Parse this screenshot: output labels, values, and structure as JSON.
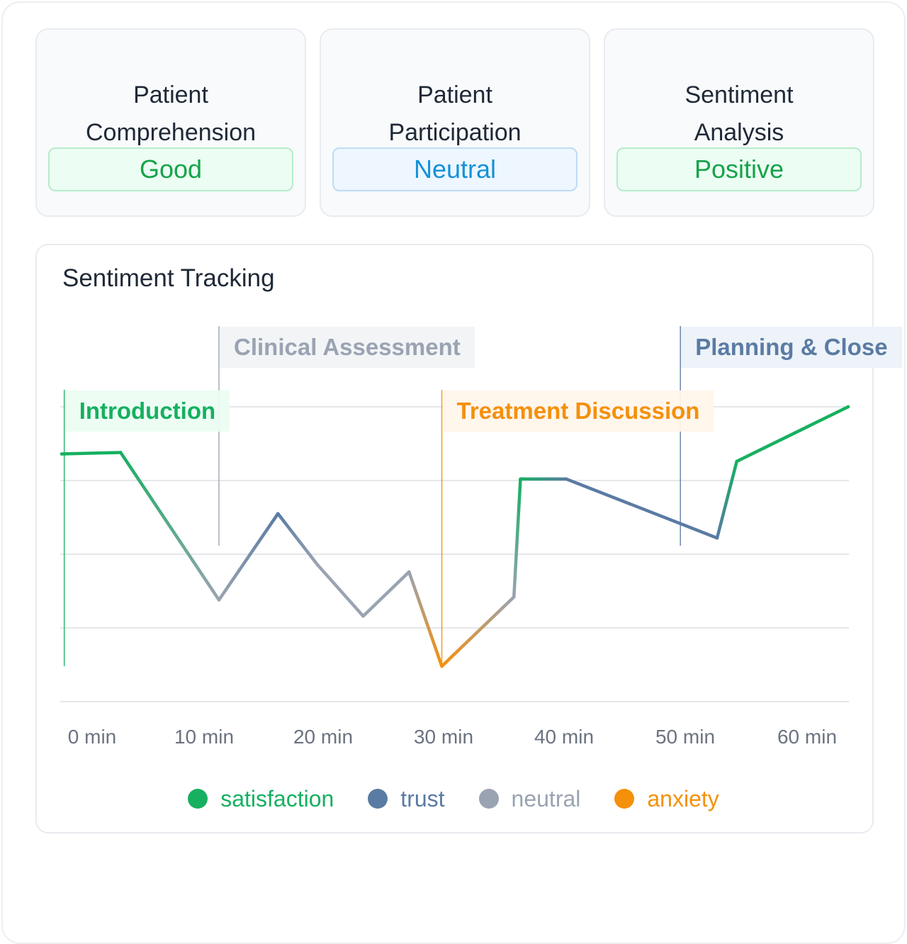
{
  "metrics": [
    {
      "title_line1": "Patient",
      "title_line2": "Comprehension",
      "value": "Good",
      "style": "green"
    },
    {
      "title_line1": "Patient",
      "title_line2": "Participation",
      "value": "Neutral",
      "style": "blue"
    },
    {
      "title_line1": "Sentiment",
      "title_line2": "Analysis",
      "value": "Positive",
      "style": "green"
    }
  ],
  "chart": {
    "title": "Sentiment Tracking"
  },
  "colors": {
    "satisfaction": "#16b060",
    "trust": "#5a7ba3",
    "neutral": "#9aa3b2",
    "anxiety": "#f5900a"
  },
  "chart_data": {
    "type": "line",
    "title": "Sentiment Tracking",
    "xlabel": "",
    "ylabel": "",
    "x_unit": "min",
    "xlim": [
      0,
      60
    ],
    "ylim": [
      0,
      4
    ],
    "grid": true,
    "x_ticks": [
      "0 min",
      "10 min",
      "20 min",
      "30 min",
      "40 min",
      "50 min",
      "60 min"
    ],
    "series": [
      {
        "x": [
          0,
          4.5,
          12,
          16.5,
          19.5,
          23,
          26.5,
          29,
          34.5,
          35,
          38.5,
          50,
          51.5,
          60
        ],
        "values": [
          3.36,
          3.38,
          1.38,
          2.55,
          1.86,
          1.16,
          1.76,
          0.48,
          1.42,
          3.02,
          3.02,
          2.22,
          3.26,
          4.0
        ],
        "sentiments": [
          "satisfaction",
          "satisfaction",
          "neutral",
          "trust",
          "neutral",
          "neutral",
          "neutral",
          "anxiety",
          "neutral",
          "satisfaction",
          "trust",
          "trust",
          "satisfaction",
          "satisfaction"
        ]
      }
    ],
    "phases": [
      {
        "label": "Introduction",
        "start": 0.2,
        "sentiment": "satisfaction",
        "row": 2
      },
      {
        "label": "Clinical Assessment",
        "start": 12,
        "sentiment": "neutral",
        "row": 1
      },
      {
        "label": "Treatment Discussion",
        "start": 29,
        "sentiment": "anxiety",
        "row": 2
      },
      {
        "label": "Planning & Close",
        "start": 47.2,
        "sentiment": "trust",
        "row": 1
      }
    ],
    "legend": [
      {
        "label": "satisfaction",
        "sentiment": "satisfaction"
      },
      {
        "label": "trust",
        "sentiment": "trust"
      },
      {
        "label": "neutral",
        "sentiment": "neutral"
      },
      {
        "label": "anxiety",
        "sentiment": "anxiety"
      }
    ],
    "legend_position": "bottom-center"
  }
}
